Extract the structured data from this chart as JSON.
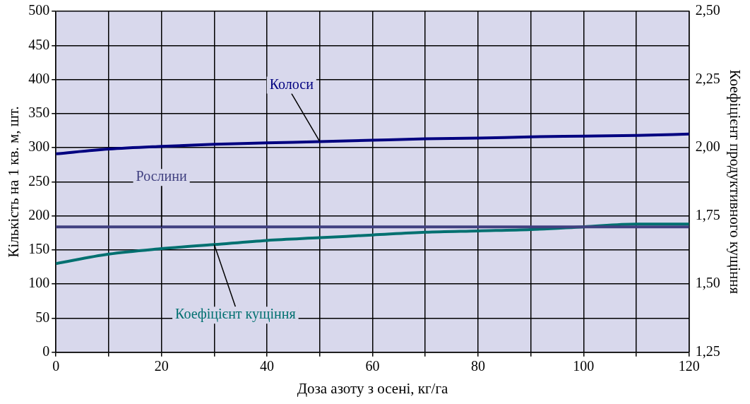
{
  "chart_data": {
    "type": "line",
    "xlabel": "Доза азоту з осені, кг/га",
    "ylabel": "Кількість на 1 кв. м, шт.",
    "y2label": "Коефіцієнт продуктивного кущіння",
    "x": [
      0,
      10,
      20,
      30,
      40,
      50,
      60,
      70,
      80,
      90,
      100,
      110,
      120
    ],
    "series": [
      {
        "name": "Колоси",
        "color": "#000080",
        "values": [
          291,
          298,
          302,
          305,
          307,
          309,
          311,
          313,
          314,
          316,
          317,
          318,
          320
        ]
      },
      {
        "name": "Рослини",
        "color": "#404080",
        "values": [
          184,
          184,
          184,
          184,
          184,
          184,
          184,
          184,
          184,
          184,
          184,
          184,
          184
        ]
      },
      {
        "name": "Коефіцієнт кущіння",
        "color": "#007070",
        "axis": "y2",
        "values": [
          1.575,
          1.61,
          1.63,
          1.645,
          1.66,
          1.67,
          1.68,
          1.69,
          1.695,
          1.7,
          1.71,
          1.72,
          1.72
        ]
      }
    ],
    "xlim": [
      0,
      120
    ],
    "xticks": [
      0,
      {
        "value": 10,
        "label": null
      },
      20,
      {
        "value": 30,
        "label": null
      },
      40,
      {
        "value": 50,
        "label": null
      },
      60,
      {
        "value": 70,
        "label": null
      },
      80,
      {
        "value": 90,
        "label": null
      },
      100,
      {
        "value": 110,
        "label": null
      },
      120
    ],
    "ylim": [
      0,
      500
    ],
    "yticks": [
      0,
      50,
      100,
      150,
      200,
      250,
      300,
      350,
      400,
      450,
      500
    ],
    "y2lim": [
      1.25,
      2.5
    ],
    "y2ticks": [
      {
        "value": 1.25,
        "label": "1,25"
      },
      {
        "value": 1.5,
        "label": "1,50"
      },
      {
        "value": 1.75,
        "label": "1,75"
      },
      {
        "value": 2,
        "label": "2,00"
      },
      {
        "value": 2.25,
        "label": "2,25"
      },
      {
        "value": 2.5,
        "label": "2,50"
      }
    ],
    "grid": true,
    "legend": false,
    "marker": "none",
    "line_style": "solid"
  }
}
